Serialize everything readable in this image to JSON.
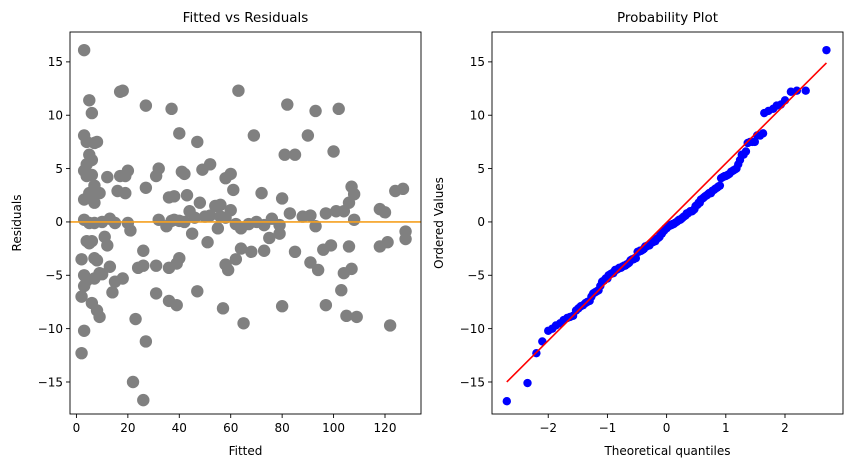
{
  "chart_data": [
    {
      "type": "scatter",
      "title": "Fitted vs Residuals",
      "xlabel": "Fitted",
      "ylabel": "Residuals",
      "xlim": [
        -2.5,
        134
      ],
      "ylim": [
        -18,
        17.8
      ],
      "xticks": [
        0,
        20,
        40,
        60,
        80,
        100,
        120
      ],
      "yticks": [
        -15,
        -10,
        -5,
        0,
        5,
        10,
        15
      ],
      "grid": false,
      "point_color": "#808080",
      "reference_line": {
        "y": 0,
        "color": "#f5a020"
      },
      "points": [
        [
          3,
          16.1
        ],
        [
          5,
          11.4
        ],
        [
          6,
          10.2
        ],
        [
          17,
          12.2
        ],
        [
          18,
          12.3
        ],
        [
          27,
          10.9
        ],
        [
          37,
          10.6
        ],
        [
          63,
          12.3
        ],
        [
          82,
          11
        ],
        [
          93,
          10.4
        ],
        [
          102,
          10.6
        ],
        [
          3,
          8.1
        ],
        [
          4,
          7.5
        ],
        [
          7,
          7.4
        ],
        [
          8,
          7.5
        ],
        [
          12,
          4.2
        ],
        [
          17,
          4.3
        ],
        [
          19,
          4.3
        ],
        [
          20,
          4.8
        ],
        [
          4,
          5.4
        ],
        [
          5,
          6.3
        ],
        [
          6,
          5.8
        ],
        [
          3,
          4.8
        ],
        [
          4,
          4.3
        ],
        [
          6,
          4.4
        ],
        [
          7,
          3.4
        ],
        [
          3,
          2.1
        ],
        [
          5,
          2.7
        ],
        [
          6,
          2.6
        ],
        [
          7,
          1.8
        ],
        [
          9,
          2.7
        ],
        [
          16,
          2.9
        ],
        [
          19,
          2.7
        ],
        [
          27,
          3.2
        ],
        [
          31,
          4.3
        ],
        [
          32,
          5
        ],
        [
          36,
          2.3
        ],
        [
          38,
          2.4
        ],
        [
          40,
          8.3
        ],
        [
          41,
          4.7
        ],
        [
          42,
          4.5
        ],
        [
          43,
          2.5
        ],
        [
          47,
          7.5
        ],
        [
          49,
          4.9
        ],
        [
          52,
          5.4
        ],
        [
          56,
          1.6
        ],
        [
          58,
          4.1
        ],
        [
          60,
          4.5
        ],
        [
          61,
          3
        ],
        [
          69,
          8.1
        ],
        [
          72,
          2.7
        ],
        [
          80,
          2.2
        ],
        [
          81,
          6.3
        ],
        [
          85,
          6.3
        ],
        [
          90,
          8.1
        ],
        [
          100,
          6.6
        ],
        [
          107,
          3.3
        ],
        [
          106,
          1.8
        ],
        [
          108,
          2.6
        ],
        [
          124,
          2.9
        ],
        [
          127,
          3.1
        ],
        [
          3,
          0.2
        ],
        [
          5,
          -0.1
        ],
        [
          7,
          -0.1
        ],
        [
          10,
          0
        ],
        [
          13,
          0.3
        ],
        [
          15,
          -0.1
        ],
        [
          20,
          -0.1
        ],
        [
          32,
          0.2
        ],
        [
          35,
          -0.4
        ],
        [
          37,
          0.1
        ],
        [
          38,
          0.2
        ],
        [
          40,
          0.1
        ],
        [
          42,
          0
        ],
        [
          44,
          1
        ],
        [
          46,
          0.4
        ],
        [
          48,
          1.8
        ],
        [
          50,
          0.5
        ],
        [
          52,
          0.6
        ],
        [
          54,
          1.5
        ],
        [
          56,
          0.5
        ],
        [
          58,
          0.4
        ],
        [
          60,
          1.1
        ],
        [
          62,
          -0.2
        ],
        [
          64,
          -0.6
        ],
        [
          67,
          -0.2
        ],
        [
          70,
          0
        ],
        [
          73,
          -0.3
        ],
        [
          76,
          0.3
        ],
        [
          79,
          -0.3
        ],
        [
          83,
          0.8
        ],
        [
          88,
          0.5
        ],
        [
          91,
          0.6
        ],
        [
          93,
          -0.4
        ],
        [
          97,
          0.8
        ],
        [
          101,
          1
        ],
        [
          104,
          1
        ],
        [
          108,
          0.2
        ],
        [
          118,
          1.2
        ],
        [
          120,
          0.9
        ],
        [
          128,
          -0.9
        ],
        [
          2,
          -3.5
        ],
        [
          3,
          -5
        ],
        [
          4,
          -1.8
        ],
        [
          5,
          -2
        ],
        [
          6,
          -1.8
        ],
        [
          7,
          -3.4
        ],
        [
          8,
          -3.6
        ],
        [
          9,
          -4.8
        ],
        [
          10,
          -4.9
        ],
        [
          11,
          -1.4
        ],
        [
          12,
          -2.2
        ],
        [
          13,
          -4.2
        ],
        [
          15,
          -5.6
        ],
        [
          18,
          -5.3
        ],
        [
          21,
          -0.8
        ],
        [
          26,
          -2.7
        ],
        [
          24,
          -4.3
        ],
        [
          26,
          -4.1
        ],
        [
          31,
          -4.1
        ],
        [
          36,
          -4.3
        ],
        [
          39,
          -3.9
        ],
        [
          40,
          -3.4
        ],
        [
          45,
          -1.1
        ],
        [
          51,
          -1.9
        ],
        [
          55,
          -0.6
        ],
        [
          58,
          -4
        ],
        [
          59,
          -4.5
        ],
        [
          62,
          -3.5
        ],
        [
          64,
          -2.5
        ],
        [
          68,
          -2.8
        ],
        [
          73,
          -2.7
        ],
        [
          75,
          -1.5
        ],
        [
          79,
          -1.1
        ],
        [
          85,
          -2.8
        ],
        [
          91,
          -3.8
        ],
        [
          94,
          -4.5
        ],
        [
          96,
          -2.6
        ],
        [
          99,
          -2.2
        ],
        [
          104,
          -4.8
        ],
        [
          106,
          -2.3
        ],
        [
          107,
          -4.4
        ],
        [
          118,
          -2.3
        ],
        [
          121,
          -1.9
        ],
        [
          128,
          -1.6
        ],
        [
          2,
          -7
        ],
        [
          3,
          -6
        ],
        [
          4,
          -5.5
        ],
        [
          6,
          -7.6
        ],
        [
          7,
          -5.3
        ],
        [
          8,
          -8.3
        ],
        [
          9,
          -8.9
        ],
        [
          14,
          -6.6
        ],
        [
          31,
          -6.7
        ],
        [
          36,
          -7.4
        ],
        [
          39,
          -7.8
        ],
        [
          47,
          -6.5
        ],
        [
          57,
          -8.1
        ],
        [
          65,
          -9.5
        ],
        [
          80,
          -7.9
        ],
        [
          97,
          -7.8
        ],
        [
          103,
          -6.4
        ],
        [
          105,
          -8.8
        ],
        [
          109,
          -8.9
        ],
        [
          2,
          -12.3
        ],
        [
          3,
          -10.2
        ],
        [
          23,
          -9.1
        ],
        [
          27,
          -11.2
        ],
        [
          22,
          -15
        ],
        [
          26,
          -16.7
        ],
        [
          122,
          -9.7
        ]
      ]
    },
    {
      "type": "scatter",
      "title": "Probability Plot",
      "xlabel": "Theoretical quantiles",
      "ylabel": "Ordered Values",
      "xlim": [
        -2.95,
        2.98
      ],
      "ylim": [
        -18,
        17.8
      ],
      "xticks": [
        -2,
        -1,
        0,
        1,
        2
      ],
      "yticks": [
        -15,
        -10,
        -5,
        0,
        5,
        10,
        15
      ],
      "grid": false,
      "point_color": "#0000ff",
      "fit_line": {
        "x": [
          -2.7,
          2.7
        ],
        "y": [
          -15,
          14.9
        ],
        "color": "#ff0000"
      },
      "points": [
        [
          -2.7,
          -16.8
        ],
        [
          -2.35,
          -15.1
        ],
        [
          -2.2,
          -12.3
        ],
        [
          -2.1,
          -11.2
        ],
        [
          -2.0,
          -10.2
        ],
        [
          -1.93,
          -10
        ],
        [
          -1.87,
          -9.7
        ],
        [
          -1.8,
          -9.5
        ],
        [
          -1.74,
          -9.2
        ],
        [
          -1.68,
          -9
        ],
        [
          -1.63,
          -8.9
        ],
        [
          -1.58,
          -8.8
        ],
        [
          -1.53,
          -8.3
        ],
        [
          -1.49,
          -8.1
        ],
        [
          -1.45,
          -7.9
        ],
        [
          -1.41,
          -7.8
        ],
        [
          -1.37,
          -7.6
        ],
        [
          -1.34,
          -7.5
        ],
        [
          -1.3,
          -7.4
        ],
        [
          -1.27,
          -7
        ],
        [
          -1.24,
          -6.7
        ],
        [
          -1.21,
          -6.6
        ],
        [
          -1.18,
          -6.5
        ],
        [
          -1.15,
          -6.4
        ],
        [
          -1.12,
          -6
        ],
        [
          -1.09,
          -5.6
        ],
        [
          -1.06,
          -5.5
        ],
        [
          -1.03,
          -5.3
        ],
        [
          -1.0,
          -5.3
        ],
        [
          -0.98,
          -5
        ],
        [
          -0.95,
          -4.9
        ],
        [
          -0.92,
          -4.8
        ],
        [
          -0.9,
          -4.8
        ],
        [
          -0.87,
          -4.5
        ],
        [
          -0.85,
          -4.5
        ],
        [
          -0.82,
          -4.4
        ],
        [
          -0.8,
          -4.3
        ],
        [
          -0.77,
          -4.3
        ],
        [
          -0.75,
          -4.2
        ],
        [
          -0.72,
          -4.1
        ],
        [
          -0.7,
          -4.1
        ],
        [
          -0.68,
          -4
        ],
        [
          -0.65,
          -3.9
        ],
        [
          -0.63,
          -3.8
        ],
        [
          -0.61,
          -3.6
        ],
        [
          -0.58,
          -3.5
        ],
        [
          -0.56,
          -3.5
        ],
        [
          -0.54,
          -3.4
        ],
        [
          -0.52,
          -3.4
        ],
        [
          -0.49,
          -2.8
        ],
        [
          -0.47,
          -2.8
        ],
        [
          -0.45,
          -2.7
        ],
        [
          -0.43,
          -2.7
        ],
        [
          -0.4,
          -2.6
        ],
        [
          -0.38,
          -2.5
        ],
        [
          -0.36,
          -2.3
        ],
        [
          -0.34,
          -2.3
        ],
        [
          -0.32,
          -2.2
        ],
        [
          -0.29,
          -2.2
        ],
        [
          -0.27,
          -2
        ],
        [
          -0.25,
          -1.9
        ],
        [
          -0.23,
          -1.9
        ],
        [
          -0.21,
          -1.8
        ],
        [
          -0.19,
          -1.8
        ],
        [
          -0.17,
          -1.6
        ],
        [
          -0.14,
          -1.5
        ],
        [
          -0.12,
          -1.4
        ],
        [
          -0.1,
          -1.1
        ],
        [
          -0.08,
          -1.1
        ],
        [
          -0.06,
          -0.9
        ],
        [
          -0.04,
          -0.8
        ],
        [
          -0.02,
          -0.6
        ],
        [
          0.0,
          -0.6
        ],
        [
          0.02,
          -0.4
        ],
        [
          0.04,
          -0.4
        ],
        [
          0.06,
          -0.3
        ],
        [
          0.08,
          -0.3
        ],
        [
          0.1,
          -0.2
        ],
        [
          0.12,
          -0.2
        ],
        [
          0.14,
          -0.1
        ],
        [
          0.17,
          0
        ],
        [
          0.19,
          0.1
        ],
        [
          0.21,
          0.2
        ],
        [
          0.23,
          0.2
        ],
        [
          0.25,
          0.3
        ],
        [
          0.27,
          0.4
        ],
        [
          0.29,
          0.5
        ],
        [
          0.32,
          0.6
        ],
        [
          0.34,
          0.8
        ],
        [
          0.36,
          0.8
        ],
        [
          0.38,
          0.9
        ],
        [
          0.4,
          1
        ],
        [
          0.43,
          1
        ],
        [
          0.45,
          1.1
        ],
        [
          0.47,
          1.2
        ],
        [
          0.49,
          1.5
        ],
        [
          0.52,
          1.6
        ],
        [
          0.54,
          1.8
        ],
        [
          0.56,
          1.8
        ],
        [
          0.58,
          2.1
        ],
        [
          0.61,
          2.2
        ],
        [
          0.63,
          2.3
        ],
        [
          0.65,
          2.4
        ],
        [
          0.68,
          2.5
        ],
        [
          0.7,
          2.6
        ],
        [
          0.72,
          2.7
        ],
        [
          0.75,
          2.7
        ],
        [
          0.77,
          2.9
        ],
        [
          0.8,
          3
        ],
        [
          0.82,
          3.1
        ],
        [
          0.85,
          3.2
        ],
        [
          0.87,
          3.3
        ],
        [
          0.9,
          3.4
        ],
        [
          0.92,
          4.1
        ],
        [
          0.95,
          4.2
        ],
        [
          0.98,
          4.3
        ],
        [
          1.0,
          4.3
        ],
        [
          1.03,
          4.4
        ],
        [
          1.06,
          4.5
        ],
        [
          1.09,
          4.7
        ],
        [
          1.12,
          4.8
        ],
        [
          1.15,
          4.9
        ],
        [
          1.18,
          5
        ],
        [
          1.21,
          5.4
        ],
        [
          1.24,
          5.8
        ],
        [
          1.27,
          6.3
        ],
        [
          1.3,
          6.3
        ],
        [
          1.34,
          6.6
        ],
        [
          1.37,
          7.4
        ],
        [
          1.41,
          7.5
        ],
        [
          1.45,
          7.5
        ],
        [
          1.49,
          7.5
        ],
        [
          1.53,
          8.1
        ],
        [
          1.58,
          8.1
        ],
        [
          1.63,
          8.3
        ],
        [
          1.65,
          10.2
        ],
        [
          1.72,
          10.4
        ],
        [
          1.8,
          10.6
        ],
        [
          1.86,
          10.9
        ],
        [
          1.93,
          11
        ],
        [
          2.0,
          11.4
        ],
        [
          2.1,
          12.2
        ],
        [
          2.2,
          12.3
        ],
        [
          2.35,
          12.3
        ],
        [
          2.7,
          16.1
        ]
      ]
    }
  ]
}
